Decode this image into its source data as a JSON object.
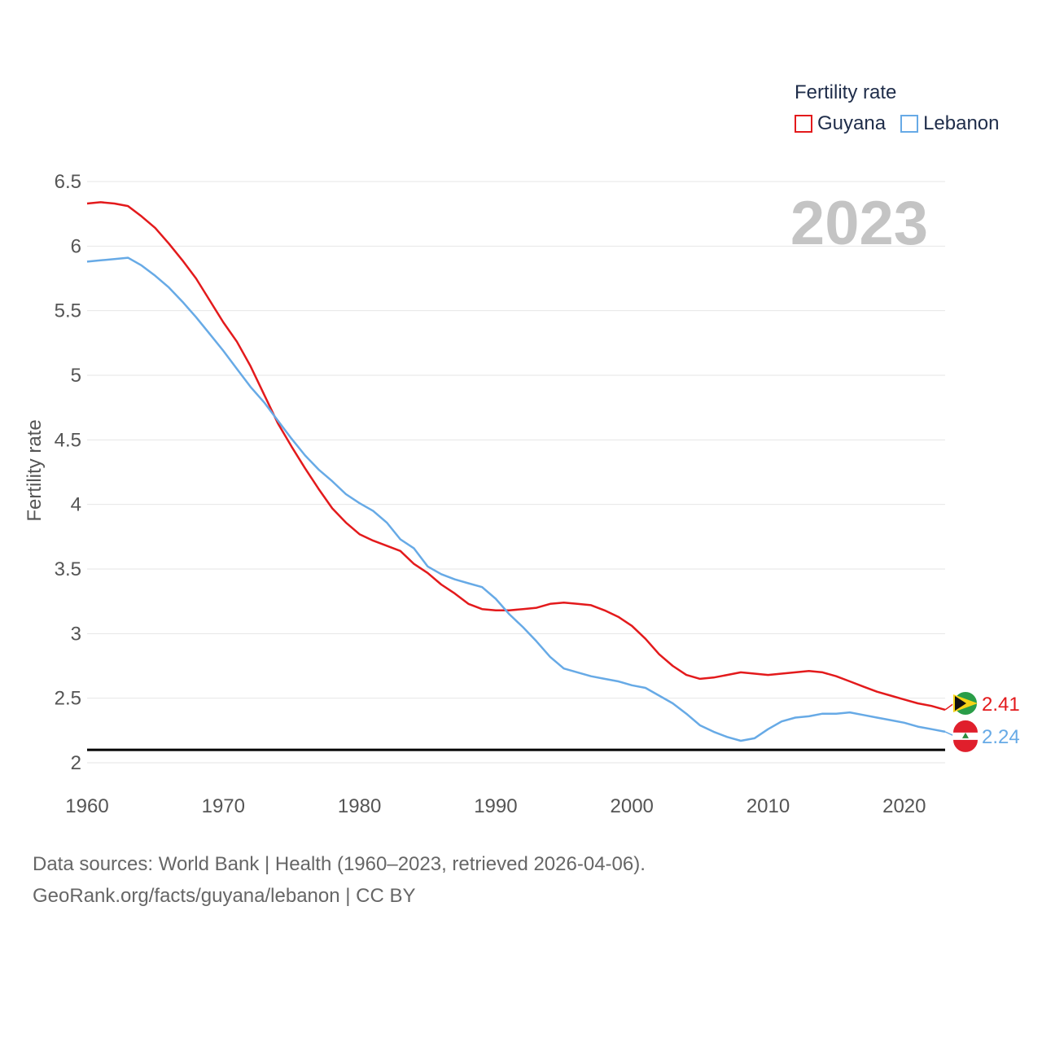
{
  "legend": {
    "title": "Fertility rate",
    "items": [
      {
        "label": "Guyana",
        "color": "#e31a1c"
      },
      {
        "label": "Lebanon",
        "color": "#67aae6"
      }
    ]
  },
  "footer": {
    "line1": "Data sources: World Bank | Health (1960–2023, retrieved 2026-04-06).",
    "line2": "GeoRank.org/facts/guyana/lebanon | CC BY"
  },
  "chart_data": {
    "type": "line",
    "title": "Fertility rate",
    "year_label": "2023",
    "xlabel": "",
    "ylabel": "Fertility rate",
    "xlim": [
      1960,
      2023
    ],
    "ylim": [
      2,
      6.5
    ],
    "xticks": [
      "1960",
      "1970",
      "1980",
      "1990",
      "2000",
      "2010",
      "2020"
    ],
    "yticks": [
      "2",
      "2.5",
      "3",
      "3.5",
      "4",
      "4.5",
      "5",
      "5.5",
      "6",
      "6.5"
    ],
    "reference_line": 2.1,
    "grid": true,
    "legend_position": "top-right",
    "x": [
      1960,
      1961,
      1962,
      1963,
      1964,
      1965,
      1966,
      1967,
      1968,
      1969,
      1970,
      1971,
      1972,
      1973,
      1974,
      1975,
      1976,
      1977,
      1978,
      1979,
      1980,
      1981,
      1982,
      1983,
      1984,
      1985,
      1986,
      1987,
      1988,
      1989,
      1990,
      1991,
      1992,
      1993,
      1994,
      1995,
      1996,
      1997,
      1998,
      1999,
      2000,
      2001,
      2002,
      2003,
      2004,
      2005,
      2006,
      2007,
      2008,
      2009,
      2010,
      2011,
      2012,
      2013,
      2014,
      2015,
      2016,
      2017,
      2018,
      2019,
      2020,
      2021,
      2022,
      2023
    ],
    "series": [
      {
        "name": "Guyana",
        "color": "#e31a1c",
        "end_label": "2.41",
        "values": [
          6.33,
          6.34,
          6.33,
          6.31,
          6.23,
          6.14,
          6.02,
          5.89,
          5.75,
          5.58,
          5.41,
          5.26,
          5.07,
          4.85,
          4.63,
          4.45,
          4.28,
          4.12,
          3.97,
          3.86,
          3.77,
          3.72,
          3.68,
          3.64,
          3.54,
          3.47,
          3.38,
          3.31,
          3.23,
          3.19,
          3.18,
          3.18,
          3.19,
          3.2,
          3.23,
          3.24,
          3.23,
          3.22,
          3.18,
          3.13,
          3.06,
          2.96,
          2.84,
          2.75,
          2.68,
          2.65,
          2.66,
          2.68,
          2.7,
          2.69,
          2.68,
          2.69,
          2.7,
          2.71,
          2.7,
          2.67,
          2.63,
          2.59,
          2.55,
          2.52,
          2.49,
          2.46,
          2.44,
          2.41
        ]
      },
      {
        "name": "Lebanon",
        "color": "#67aae6",
        "end_label": "2.24",
        "values": [
          5.88,
          5.89,
          5.9,
          5.91,
          5.85,
          5.77,
          5.68,
          5.57,
          5.45,
          5.32,
          5.19,
          5.05,
          4.91,
          4.79,
          4.65,
          4.51,
          4.38,
          4.27,
          4.18,
          4.08,
          4.01,
          3.95,
          3.86,
          3.73,
          3.66,
          3.52,
          3.46,
          3.42,
          3.39,
          3.36,
          3.27,
          3.15,
          3.05,
          2.94,
          2.82,
          2.73,
          2.7,
          2.67,
          2.65,
          2.63,
          2.6,
          2.58,
          2.52,
          2.46,
          2.38,
          2.29,
          2.24,
          2.2,
          2.17,
          2.19,
          2.26,
          2.32,
          2.35,
          2.36,
          2.38,
          2.38,
          2.39,
          2.37,
          2.35,
          2.33,
          2.31,
          2.28,
          2.26,
          2.24
        ]
      }
    ]
  }
}
